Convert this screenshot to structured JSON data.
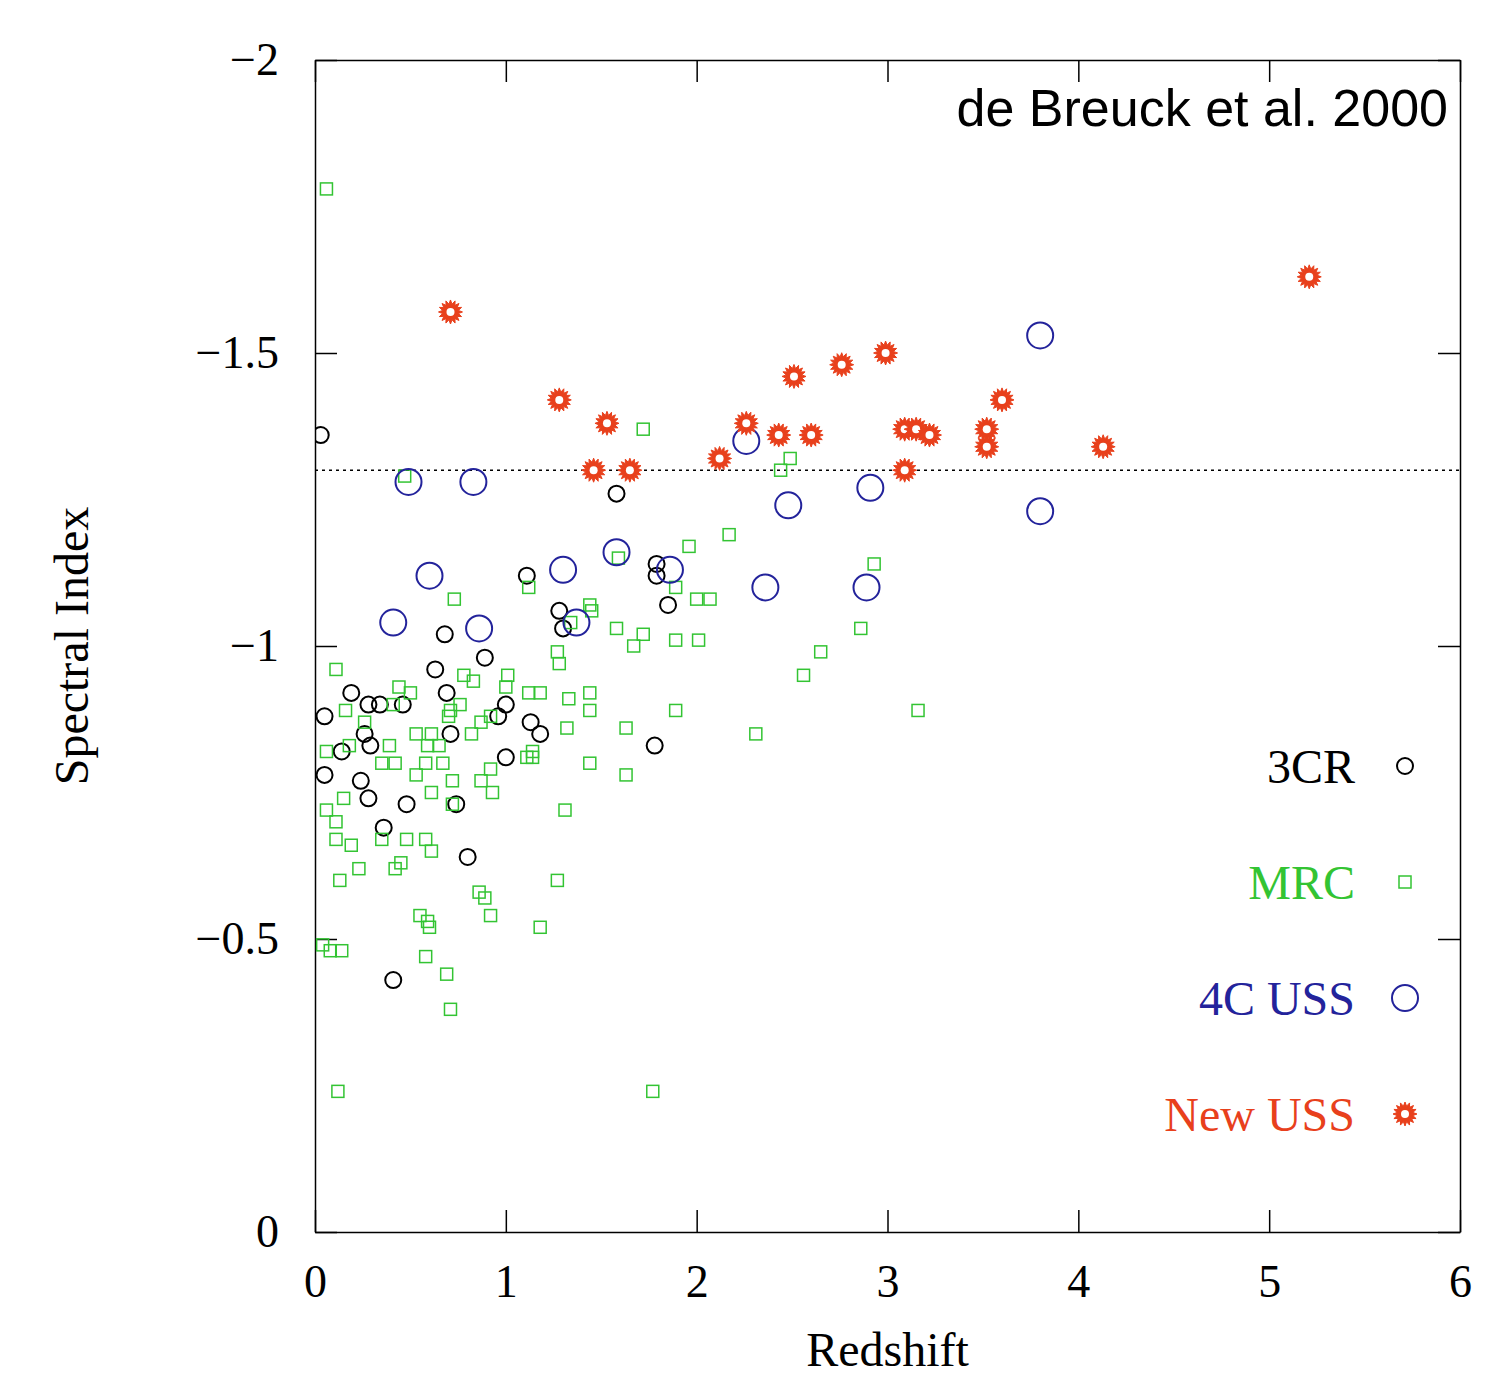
{
  "chart_data": {
    "type": "scatter",
    "title": "de Breuck et al. 2000",
    "x_label": "Redshift",
    "y_label": "Spectral Index",
    "xlim": [
      0,
      6
    ],
    "ylim": [
      0,
      -2
    ],
    "xticks": [
      0,
      1,
      2,
      3,
      4,
      5,
      6
    ],
    "yticks": [
      {
        "value": 0,
        "label": "0"
      },
      {
        "value": -0.5,
        "label": "−0.5"
      },
      {
        "value": -1,
        "label": "−1"
      },
      {
        "value": -1.5,
        "label": "−1.5"
      },
      {
        "value": -2,
        "label": "−2"
      }
    ],
    "reference_line": -1.3,
    "grid": false,
    "legend": "lower right",
    "series": [
      {
        "name": "3CR",
        "color": "#000000",
        "marker": "small-circle",
        "x": [
          0.03,
          1.58,
          1.11,
          1.79,
          1.79,
          1.85,
          1.28,
          1.3,
          0.68,
          0.89,
          0.63,
          0.69,
          0.19,
          0.34,
          0.28,
          0.46,
          0.05,
          1.0,
          0.96,
          1.13,
          1.18,
          0.71,
          0.26,
          0.29,
          1.0,
          0.14,
          0.05,
          0.24,
          0.28,
          0.36,
          0.48,
          0.74,
          1.78,
          0.8,
          0.41
        ],
        "values": [
          -1.36,
          -1.26,
          -1.12,
          -1.14,
          -1.12,
          -1.07,
          -1.06,
          -1.03,
          -1.02,
          -0.98,
          -0.96,
          -0.92,
          -0.92,
          -0.9,
          -0.9,
          -0.9,
          -0.88,
          -0.9,
          -0.88,
          -0.87,
          -0.85,
          -0.85,
          -0.85,
          -0.83,
          -0.81,
          -0.82,
          -0.78,
          -0.77,
          -0.74,
          -0.69,
          -0.73,
          -0.73,
          -0.83,
          -0.64,
          -0.43
        ]
      },
      {
        "name": "MRC",
        "color": "#33c433",
        "marker": "square",
        "x": [
          0.06,
          0.47,
          1.72,
          2.44,
          2.49,
          2.17,
          1.96,
          1.89,
          2.0,
          2.07,
          2.93,
          2.86,
          2.01,
          1.89,
          1.72,
          1.67,
          1.58,
          1.44,
          1.34,
          1.27,
          1.12,
          0.73,
          1.59,
          2.65,
          2.56,
          3.16,
          2.31,
          1.89,
          1.63,
          1.44,
          1.44,
          1.32,
          1.18,
          1.12,
          1.11,
          1.14,
          1.01,
          1.0,
          0.92,
          0.87,
          0.82,
          0.78,
          0.83,
          0.76,
          0.7,
          0.71,
          0.65,
          0.67,
          0.61,
          0.59,
          0.58,
          0.61,
          0.5,
          0.44,
          0.41,
          0.39,
          0.42,
          0.35,
          0.26,
          0.16,
          0.11,
          0.18,
          0.15,
          0.11,
          0.11,
          0.13,
          0.23,
          0.06,
          0.06,
          0.04,
          0.08,
          0.14,
          0.12,
          0.42,
          0.45,
          0.35,
          0.48,
          0.58,
          0.61,
          0.55,
          0.59,
          0.6,
          0.58,
          0.69,
          0.71,
          0.86,
          0.92,
          0.89,
          1.18,
          1.27,
          1.31,
          1.44,
          1.63,
          1.77,
          0.93,
          0.87,
          0.92,
          0.72,
          0.53,
          0.72,
          1.14,
          1.33,
          1.28,
          1.45,
          0.19,
          0.53
        ],
        "values": [
          -1.78,
          -1.29,
          -1.37,
          -1.3,
          -1.32,
          -1.19,
          -1.17,
          -1.1,
          -1.08,
          -1.08,
          -1.14,
          -1.03,
          -1.01,
          -1.01,
          -1.02,
          -1.0,
          -1.03,
          -1.07,
          -1.04,
          -0.99,
          -1.1,
          -1.08,
          -1.15,
          -0.99,
          -0.95,
          -0.89,
          -0.85,
          -0.89,
          -0.86,
          -0.92,
          -0.89,
          -0.86,
          -0.92,
          -0.92,
          -0.81,
          -0.82,
          -0.95,
          -0.93,
          -0.88,
          -0.87,
          -0.85,
          -0.95,
          -0.94,
          -0.9,
          -0.88,
          -0.89,
          -0.83,
          -0.8,
          -0.85,
          -0.83,
          -0.8,
          -0.75,
          -0.92,
          -0.93,
          -0.9,
          -0.83,
          -0.8,
          -0.8,
          -0.87,
          -0.89,
          -0.96,
          -0.83,
          -0.74,
          -0.7,
          -0.67,
          -0.6,
          -0.62,
          -0.82,
          -0.72,
          -0.49,
          -0.48,
          -0.48,
          -0.24,
          -0.62,
          -0.63,
          -0.67,
          -0.67,
          -0.67,
          -0.65,
          -0.54,
          -0.53,
          -0.52,
          -0.47,
          -0.44,
          -0.38,
          -0.58,
          -0.54,
          -0.57,
          -0.52,
          -0.6,
          -0.72,
          -0.8,
          -0.78,
          -0.24,
          -0.75,
          -0.77,
          -0.79,
          -0.77,
          -0.78,
          -0.73,
          -0.81,
          -0.91,
          -0.97,
          -1.06,
          -0.66,
          -0.85
        ]
      },
      {
        "name": "4C USS",
        "color": "#23239b",
        "marker": "circle",
        "x": [
          0.49,
          0.83,
          0.6,
          0.41,
          0.86,
          1.3,
          1.37,
          1.58,
          1.86,
          2.26,
          2.48,
          2.36,
          2.91,
          2.89,
          3.8,
          3.8
        ],
        "values": [
          -1.28,
          -1.28,
          -1.12,
          -1.04,
          -1.03,
          -1.13,
          -1.04,
          -1.16,
          -1.13,
          -1.35,
          -1.24,
          -1.1,
          -1.27,
          -1.1,
          -1.53,
          -1.23
        ]
      },
      {
        "name": "New USS",
        "color": "#e8401c",
        "marker": "star",
        "x": [
          0.71,
          1.28,
          1.53,
          1.46,
          1.65,
          2.12,
          2.26,
          2.43,
          2.6,
          2.51,
          2.76,
          2.99,
          3.09,
          3.15,
          3.22,
          3.09,
          3.52,
          3.52,
          3.6,
          4.13,
          5.21
        ],
        "values": [
          -1.57,
          -1.42,
          -1.38,
          -1.3,
          -1.3,
          -1.32,
          -1.38,
          -1.36,
          -1.36,
          -1.46,
          -1.48,
          -1.5,
          -1.37,
          -1.37,
          -1.36,
          -1.3,
          -1.37,
          -1.34,
          -1.42,
          -1.34,
          -1.63
        ]
      }
    ]
  }
}
